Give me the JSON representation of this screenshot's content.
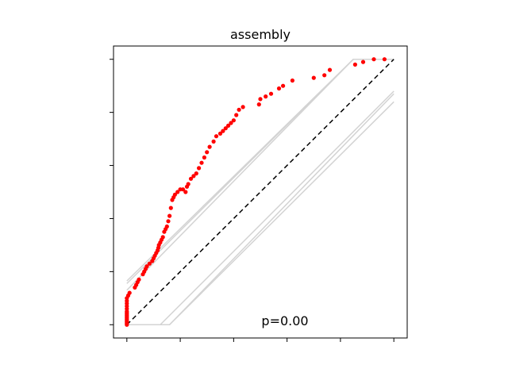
{
  "chart_data": {
    "type": "scatter",
    "title": "assembly",
    "annotation": "p=0.00",
    "xlim": [
      -0.05,
      1.05
    ],
    "ylim": [
      -0.05,
      1.05
    ],
    "xticks": [
      0,
      0.2,
      0.4,
      0.6,
      0.8,
      1.0
    ],
    "yticks": [
      0,
      0.2,
      0.4,
      0.6,
      0.8,
      1.0
    ],
    "tick_labels_visible": false,
    "grid": false,
    "reference_line": {
      "x": [
        0,
        1
      ],
      "y": [
        0,
        1
      ],
      "style": "dashed",
      "color": "#000000"
    },
    "envelope_lines": [
      {
        "x": [
          0,
          0.848,
          1.0
        ],
        "y": [
          0.155,
          1.0,
          1.0
        ]
      },
      {
        "x": [
          0,
          0.848,
          1.0
        ],
        "y": [
          0.165,
          1.0,
          1.0
        ]
      },
      {
        "x": [
          0,
          0.848,
          1.0
        ],
        "y": [
          0.13,
          1.0,
          1.0
        ]
      },
      {
        "x": [
          0,
          0.125,
          1.0
        ],
        "y": [
          0.0,
          0.0,
          0.88
        ]
      },
      {
        "x": [
          0,
          0.16,
          1.0
        ],
        "y": [
          0.0,
          0.0,
          0.84
        ]
      },
      {
        "x": [
          0,
          0.16,
          1.0
        ],
        "y": [
          0.0,
          0.0,
          0.87
        ]
      }
    ],
    "envelope_color": "#d3d3d3",
    "point_color": "#ff0000",
    "points": [
      {
        "x": 0.0,
        "y": 0.0
      },
      {
        "x": 0.0,
        "y": 0.005
      },
      {
        "x": 0.0,
        "y": 0.01
      },
      {
        "x": 0.0,
        "y": 0.015
      },
      {
        "x": 0.0,
        "y": 0.02
      },
      {
        "x": 0.0,
        "y": 0.025
      },
      {
        "x": 0.0,
        "y": 0.03
      },
      {
        "x": 0.0,
        "y": 0.035
      },
      {
        "x": 0.0,
        "y": 0.04
      },
      {
        "x": 0.0,
        "y": 0.045
      },
      {
        "x": 0.0,
        "y": 0.05
      },
      {
        "x": 0.0,
        "y": 0.06
      },
      {
        "x": 0.0,
        "y": 0.07
      },
      {
        "x": 0.0,
        "y": 0.08
      },
      {
        "x": 0.0,
        "y": 0.09
      },
      {
        "x": 0.0,
        "y": 0.1
      },
      {
        "x": 0.005,
        "y": 0.11
      },
      {
        "x": 0.01,
        "y": 0.12
      },
      {
        "x": 0.03,
        "y": 0.14
      },
      {
        "x": 0.035,
        "y": 0.15
      },
      {
        "x": 0.04,
        "y": 0.16
      },
      {
        "x": 0.045,
        "y": 0.17
      },
      {
        "x": 0.06,
        "y": 0.19
      },
      {
        "x": 0.065,
        "y": 0.2
      },
      {
        "x": 0.07,
        "y": 0.21
      },
      {
        "x": 0.075,
        "y": 0.22
      },
      {
        "x": 0.085,
        "y": 0.23
      },
      {
        "x": 0.095,
        "y": 0.24
      },
      {
        "x": 0.1,
        "y": 0.25
      },
      {
        "x": 0.105,
        "y": 0.26
      },
      {
        "x": 0.11,
        "y": 0.27
      },
      {
        "x": 0.115,
        "y": 0.28
      },
      {
        "x": 0.118,
        "y": 0.29
      },
      {
        "x": 0.12,
        "y": 0.3
      },
      {
        "x": 0.125,
        "y": 0.31
      },
      {
        "x": 0.13,
        "y": 0.32
      },
      {
        "x": 0.135,
        "y": 0.33
      },
      {
        "x": 0.14,
        "y": 0.35
      },
      {
        "x": 0.145,
        "y": 0.36
      },
      {
        "x": 0.15,
        "y": 0.37
      },
      {
        "x": 0.155,
        "y": 0.39
      },
      {
        "x": 0.16,
        "y": 0.41
      },
      {
        "x": 0.165,
        "y": 0.44
      },
      {
        "x": 0.17,
        "y": 0.47
      },
      {
        "x": 0.175,
        "y": 0.48
      },
      {
        "x": 0.18,
        "y": 0.49
      },
      {
        "x": 0.19,
        "y": 0.5
      },
      {
        "x": 0.2,
        "y": 0.51
      },
      {
        "x": 0.21,
        "y": 0.51
      },
      {
        "x": 0.22,
        "y": 0.5
      },
      {
        "x": 0.225,
        "y": 0.52
      },
      {
        "x": 0.23,
        "y": 0.53
      },
      {
        "x": 0.24,
        "y": 0.55
      },
      {
        "x": 0.25,
        "y": 0.56
      },
      {
        "x": 0.26,
        "y": 0.57
      },
      {
        "x": 0.27,
        "y": 0.59
      },
      {
        "x": 0.28,
        "y": 0.61
      },
      {
        "x": 0.29,
        "y": 0.63
      },
      {
        "x": 0.3,
        "y": 0.65
      },
      {
        "x": 0.31,
        "y": 0.67
      },
      {
        "x": 0.325,
        "y": 0.69
      },
      {
        "x": 0.335,
        "y": 0.71
      },
      {
        "x": 0.35,
        "y": 0.72
      },
      {
        "x": 0.36,
        "y": 0.73
      },
      {
        "x": 0.37,
        "y": 0.74
      },
      {
        "x": 0.38,
        "y": 0.75
      },
      {
        "x": 0.39,
        "y": 0.76
      },
      {
        "x": 0.4,
        "y": 0.77
      },
      {
        "x": 0.41,
        "y": 0.79
      },
      {
        "x": 0.42,
        "y": 0.81
      },
      {
        "x": 0.435,
        "y": 0.82
      },
      {
        "x": 0.495,
        "y": 0.83
      },
      {
        "x": 0.5,
        "y": 0.85
      },
      {
        "x": 0.52,
        "y": 0.86
      },
      {
        "x": 0.54,
        "y": 0.87
      },
      {
        "x": 0.57,
        "y": 0.89
      },
      {
        "x": 0.585,
        "y": 0.9
      },
      {
        "x": 0.62,
        "y": 0.92
      },
      {
        "x": 0.7,
        "y": 0.93
      },
      {
        "x": 0.74,
        "y": 0.94
      },
      {
        "x": 0.76,
        "y": 0.96
      },
      {
        "x": 0.855,
        "y": 0.98
      },
      {
        "x": 0.885,
        "y": 0.99
      },
      {
        "x": 0.925,
        "y": 1.0
      },
      {
        "x": 0.965,
        "y": 1.0
      }
    ]
  }
}
